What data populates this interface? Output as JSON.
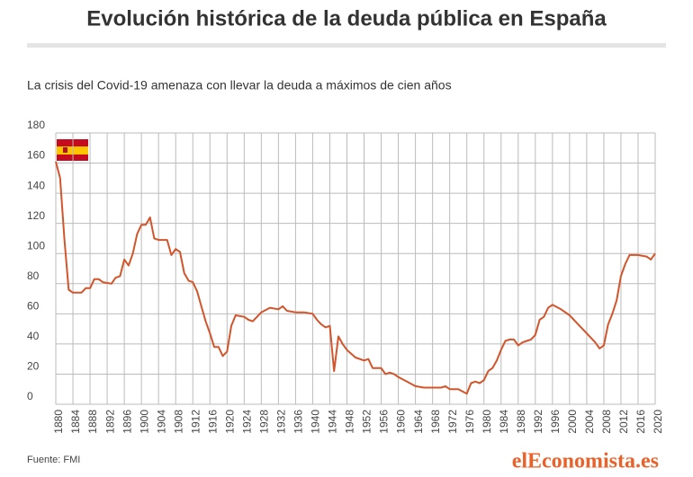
{
  "chart_data": {
    "type": "line",
    "title": "Evolución histórica de la deuda pública en España",
    "subtitle": "La crisis del Covid-19 amenaza con llevar la deuda a máximos de cien años",
    "source": "Fuente: FMI",
    "brand": "elEconomista.es",
    "grid": true,
    "xlim": [
      1880,
      2020
    ],
    "xticks": [
      1880,
      1884,
      1888,
      1892,
      1896,
      1900,
      1904,
      1908,
      1912,
      1916,
      1920,
      1924,
      1928,
      1932,
      1936,
      1940,
      1944,
      1948,
      1952,
      1956,
      1960,
      1964,
      1968,
      1972,
      1976,
      1980,
      1984,
      1988,
      1992,
      1996,
      2000,
      2004,
      2008,
      2012,
      2016,
      2020
    ],
    "ylim": [
      0,
      180
    ],
    "yticks": [
      0,
      20,
      40,
      60,
      80,
      100,
      120,
      140,
      160,
      180
    ],
    "x": [
      1880,
      1881,
      1882,
      1883,
      1884,
      1886,
      1887,
      1888,
      1889,
      1890,
      1891,
      1893,
      1894,
      1895,
      1896,
      1897,
      1898,
      1899,
      1900,
      1901,
      1902,
      1903,
      1904,
      1906,
      1907,
      1908,
      1909,
      1910,
      1911,
      1912,
      1913,
      1914,
      1915,
      1916,
      1917,
      1918,
      1919,
      1920,
      1921,
      1922,
      1924,
      1925,
      1926,
      1927,
      1928,
      1930,
      1932,
      1933,
      1934,
      1936,
      1938,
      1940,
      1941,
      1942,
      1943,
      1944,
      1945,
      1946,
      1947,
      1948,
      1950,
      1952,
      1953,
      1954,
      1956,
      1957,
      1958,
      1959,
      1960,
      1962,
      1964,
      1966,
      1970,
      1971,
      1972,
      1974,
      1976,
      1977,
      1978,
      1979,
      1980,
      1981,
      1982,
      1983,
      1984,
      1985,
      1986,
      1987,
      1988,
      1989,
      1990,
      1991,
      1992,
      1993,
      1994,
      1995,
      1996,
      1998,
      2000,
      2002,
      2004,
      2006,
      2007,
      2008,
      2009,
      2010,
      2011,
      2012,
      2013,
      2014,
      2016,
      2018,
      2019,
      2020
    ],
    "series": [
      {
        "color": "#d2552b",
        "values": [
          161,
          150,
          110,
          76,
          74,
          74,
          77,
          77,
          83,
          83,
          81,
          80,
          84,
          85,
          96,
          92,
          100,
          113,
          119,
          119,
          124,
          110,
          109,
          109,
          99,
          103,
          101,
          87,
          82,
          81,
          75,
          65,
          55,
          47,
          38,
          38,
          32,
          35,
          52,
          59,
          58,
          56,
          55,
          58,
          61,
          64,
          63,
          65,
          62,
          61,
          61,
          60,
          56,
          53,
          51,
          52,
          22,
          45,
          40,
          36,
          31,
          29,
          30,
          24,
          24,
          20,
          21,
          20,
          18,
          15,
          12,
          11,
          11,
          12,
          10,
          10,
          7,
          14,
          15,
          14,
          16,
          22,
          24,
          29,
          36,
          42,
          43,
          43,
          39,
          41,
          42,
          43,
          46,
          56,
          58,
          64,
          66,
          63,
          59,
          53,
          47,
          41,
          37,
          39,
          53,
          60,
          69,
          85,
          93,
          99,
          99,
          98,
          96,
          100
        ]
      }
    ]
  }
}
